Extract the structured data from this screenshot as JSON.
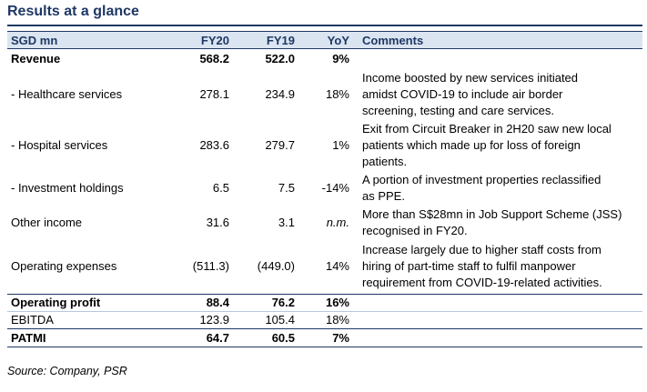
{
  "title": "Results at a glance",
  "table": {
    "headers": {
      "label": "SGD mn",
      "fy20": "FY20",
      "fy19": "FY19",
      "yoy": "YoY",
      "comments": "Comments"
    },
    "rows": {
      "revenue": {
        "label": "Revenue",
        "fy20": "568.2",
        "fy19": "522.0",
        "yoy": "9%",
        "comment": ""
      },
      "healthcare": {
        "label": "- Healthcare services",
        "fy20": "278.1",
        "fy19": "234.9",
        "yoy": "18%",
        "comment_lines": [
          "Income boosted by new services initiated",
          "amidst COVID-19 to include air border",
          "screening, testing and  care services."
        ]
      },
      "hospital": {
        "label": "- Hospital services",
        "fy20": "283.6",
        "fy19": "279.7",
        "yoy": "1%",
        "comment_lines": [
          "Exit from Circuit Breaker in 2H20 saw new local",
          "patients which made up for loss of foreign",
          "patients."
        ]
      },
      "investment": {
        "label": "- Investment holdings",
        "fy20": "6.5",
        "fy19": "7.5",
        "yoy": "-14%",
        "comment_lines": [
          "A portion of investment properties reclassified",
          "as PPE."
        ]
      },
      "other_income": {
        "label": "Other income",
        "fy20": "31.6",
        "fy19": "3.1",
        "yoy": "n.m.",
        "comment_lines": [
          "More than S$28mn in Job Support Scheme (JSS)",
          "recognised in FY20."
        ]
      },
      "opex": {
        "label": "Operating expenses",
        "fy20": "(511.3)",
        "fy19": "(449.0)",
        "yoy": "14%",
        "comment_lines": [
          "Increase largely due to higher staff costs from",
          "hiring of part-time staff to fulfil manpower",
          "requirement from COVID-19-related activities."
        ]
      },
      "operating_profit": {
        "label": "Operating profit",
        "fy20": "88.4",
        "fy19": "76.2",
        "yoy": "16%"
      },
      "ebitda": {
        "label": "EBITDA",
        "fy20": "123.9",
        "fy19": "105.4",
        "yoy": "18%"
      },
      "patmi": {
        "label": "PATMI",
        "fy20": "64.7",
        "fy19": "60.5",
        "yoy": "7%"
      }
    }
  },
  "source": "Source: Company, PSR"
}
